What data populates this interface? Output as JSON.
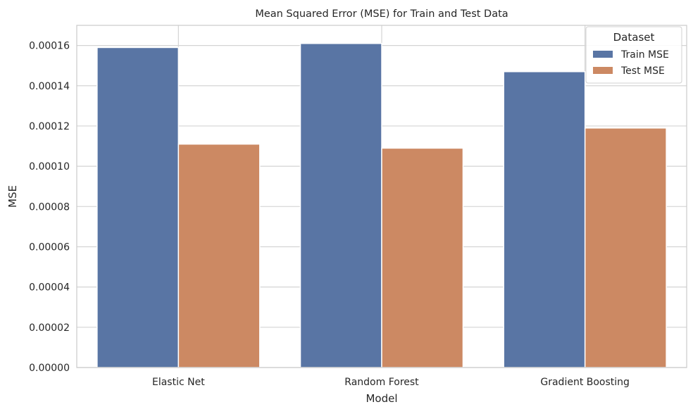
{
  "chart_data": {
    "type": "bar",
    "title": "Mean Squared Error (MSE) for Train and Test Data",
    "xlabel": "Model",
    "ylabel": "MSE",
    "categories": [
      "Elastic Net",
      "Random Forest",
      "Gradient Boosting"
    ],
    "series": [
      {
        "name": "Train MSE",
        "values": [
          0.000159,
          0.000161,
          0.000147
        ],
        "color": "#5975a4"
      },
      {
        "name": "Test MSE",
        "values": [
          0.000111,
          0.000109,
          0.000119
        ],
        "color": "#cc8963"
      }
    ],
    "ylim": [
      0,
      0.00017
    ],
    "yticks": [
      0.0,
      2e-05,
      4e-05,
      6e-05,
      8e-05,
      0.0001,
      0.00012,
      0.00014,
      0.00016
    ],
    "ytick_labels": [
      "0.00000",
      "0.00002",
      "0.00004",
      "0.00006",
      "0.00008",
      "0.00010",
      "0.00012",
      "0.00014",
      "0.00016"
    ],
    "grid": true,
    "legend": {
      "title": "Dataset",
      "placement": "top-right"
    }
  }
}
